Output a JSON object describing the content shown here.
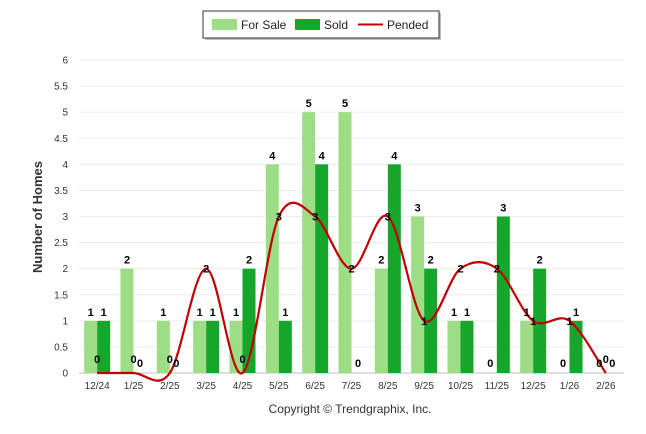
{
  "chart_data": {
    "type": "bar",
    "title": "",
    "xlabel": "",
    "ylabel": "Number of Homes",
    "ylim": [
      0,
      6
    ],
    "yticks": [
      "0",
      "0.5",
      "1",
      "1.5",
      "2",
      "2.5",
      "3",
      "3.5",
      "4",
      "4.5",
      "5",
      "5.5",
      "6"
    ],
    "grid": true,
    "legend_position": "top-center",
    "categories": [
      "12/24",
      "1/25",
      "2/25",
      "3/25",
      "4/25",
      "5/25",
      "6/25",
      "7/25",
      "8/25",
      "9/25",
      "10/25",
      "11/25",
      "12/25",
      "1/26",
      "2/26"
    ],
    "series": [
      {
        "name": "For Sale",
        "kind": "bar",
        "color": "#9ddd85",
        "values": [
          1,
          2,
          1,
          1,
          1,
          4,
          5,
          5,
          2,
          3,
          1,
          0,
          1,
          0,
          0
        ]
      },
      {
        "name": "Sold",
        "kind": "bar",
        "color": "#17a62c",
        "values": [
          1,
          0,
          0,
          1,
          2,
          1,
          4,
          0,
          4,
          2,
          1,
          3,
          2,
          1,
          0
        ]
      },
      {
        "name": "Pended",
        "kind": "line",
        "color": "#c00000",
        "values": [
          0,
          0,
          0,
          2,
          0,
          3,
          3,
          2,
          3,
          1,
          2,
          2,
          1,
          1,
          0
        ]
      }
    ],
    "footer": "Copyright © Trendgraphix, Inc."
  }
}
